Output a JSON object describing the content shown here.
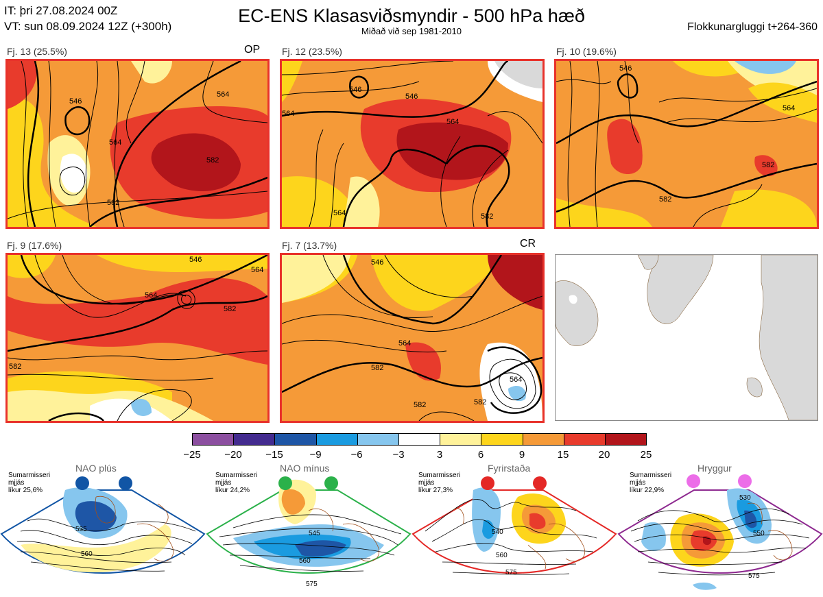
{
  "header": {
    "it": "IT: þri 27.08.2024 00Z",
    "vt": "VT: sun 08.09.2024 12Z  (+300h)",
    "title": "EC-ENS Klasasviðsmyndir - 500 hPa hæð",
    "subtitle": "Miðað við sep 1981-2010",
    "window": "Flokkunargluggi t+264-360"
  },
  "panels": [
    {
      "label": "Fj. 13 (25.5%)",
      "tag": "OP",
      "contours": [
        "546",
        "564",
        "582",
        "564",
        "582"
      ]
    },
    {
      "label": "Fj. 12 (23.5%)",
      "tag": "",
      "contours": [
        "546",
        "564",
        "564",
        "582",
        "546",
        "564"
      ]
    },
    {
      "label": "Fj. 10 (19.6%)",
      "tag": "",
      "contours": [
        "546",
        "564",
        "582",
        "582"
      ]
    },
    {
      "label": "Fj. 9 (17.6%)",
      "tag": "",
      "contours": [
        "564",
        "582",
        "564",
        "582",
        "546"
      ]
    },
    {
      "label": "Fj. 7 (13.7%)",
      "tag": "CR",
      "contours": [
        "546",
        "564",
        "582",
        "564",
        "582",
        "582"
      ]
    }
  ],
  "colorbar": {
    "colors": [
      "#8c4fa0",
      "#432b8f",
      "#1e56a6",
      "#1a9be0",
      "#86c6ee",
      "#ffffff",
      "#fff29a",
      "#fdd51c",
      "#f59a38",
      "#e83b2c",
      "#b2151b"
    ],
    "ticks": [
      "−25",
      "−20",
      "−15",
      "−9",
      "−6",
      "−3",
      "3",
      "6",
      "9",
      "15",
      "20",
      "25"
    ]
  },
  "regimes": [
    {
      "name": "NAO plús",
      "season": "Sumarmisseri",
      "sub": "mjjás",
      "prob": "líkur 25,6%",
      "contours": [
        "535",
        "560"
      ],
      "dot_color": "#1155a5",
      "border": "#1155a5"
    },
    {
      "name": "NAO mínus",
      "season": "Sumarmisseri",
      "sub": "mjjás",
      "prob": "líkur 24,2%",
      "contours": [
        "545",
        "560",
        "575"
      ],
      "dot_color": "#2bb14a",
      "border": "#2bb14a"
    },
    {
      "name": "Fyrirstaða",
      "season": "Sumarmisseri",
      "sub": "mjjás",
      "prob": "líkur 27,3%",
      "contours": [
        "540",
        "560",
        "575"
      ],
      "dot_color": "#e42826",
      "border": "#e42826"
    },
    {
      "name": "Hryggur",
      "season": "Sumarmisseri",
      "sub": "mjjás",
      "prob": "líkur 22,9%",
      "contours": [
        "530",
        "550",
        "575"
      ],
      "dot_color": "#ec6de8",
      "border": "#8e2a90"
    }
  ]
}
